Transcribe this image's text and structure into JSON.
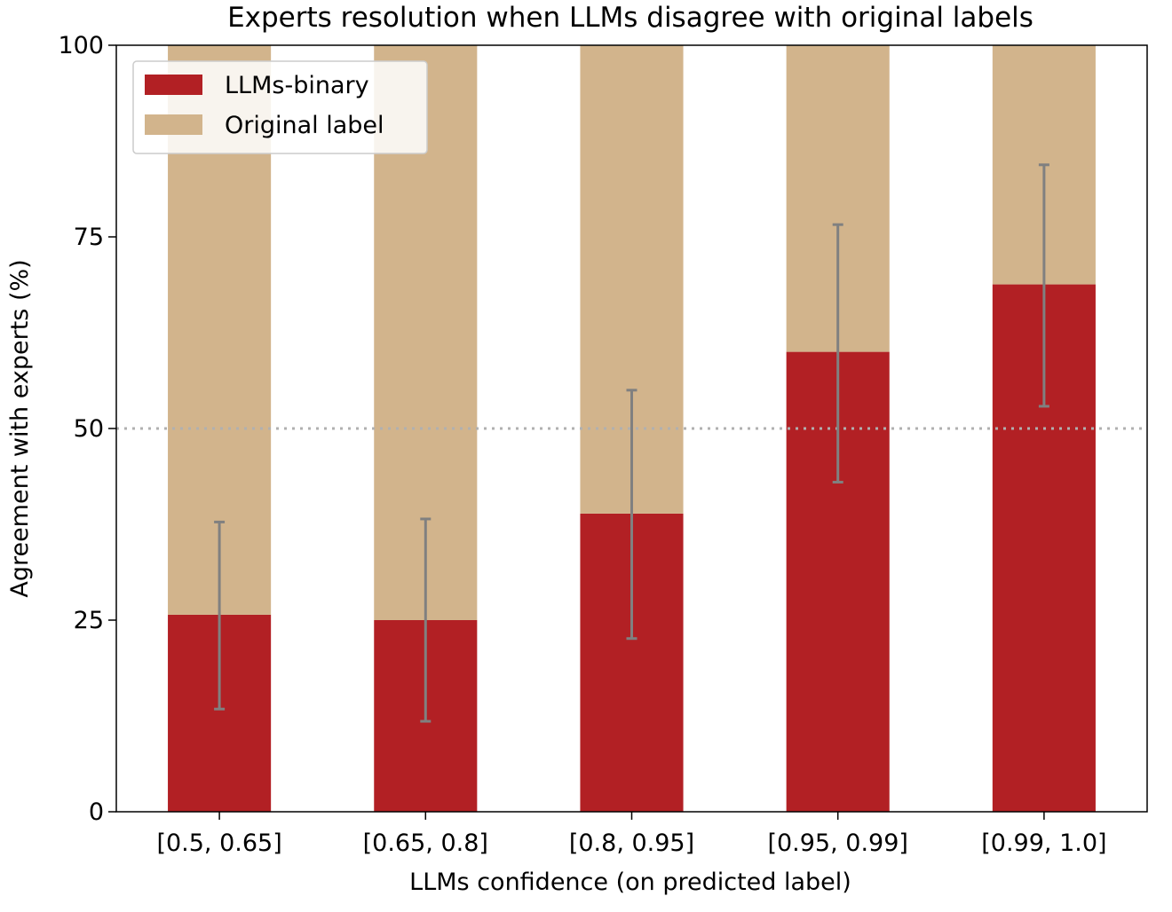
{
  "chart_data": {
    "type": "bar",
    "stacked": true,
    "title": "Experts resolution when LLMs disagree with original labels",
    "xlabel": "LLMs confidence (on predicted label)",
    "ylabel": "Agreement with experts (%)",
    "categories": [
      "[0.5, 0.65]",
      "[0.65, 0.8]",
      "[0.8, 0.95]",
      "[0.95, 0.99]",
      "[0.99, 1.0]"
    ],
    "ylim": [
      0,
      100
    ],
    "yticks": [
      0,
      25,
      50,
      75,
      100
    ],
    "series": [
      {
        "name": "LLMs-binary",
        "color": "#b22024",
        "values": [
          25.7,
          25.0,
          38.9,
          60.0,
          68.8
        ],
        "error_low": [
          13.4,
          11.8,
          22.6,
          43.0,
          52.9
        ],
        "error_high": [
          37.8,
          38.2,
          55.0,
          76.6,
          84.4
        ]
      },
      {
        "name": "Original label",
        "color": "#d2b48c",
        "values": [
          74.3,
          75.0,
          61.1,
          40.0,
          31.2
        ]
      }
    ],
    "error_bar_color": "#808080",
    "reference_line": {
      "y": 50,
      "style": "dotted",
      "color": "#b0b0b0"
    },
    "legend_position": "top-left",
    "grid": false
  }
}
